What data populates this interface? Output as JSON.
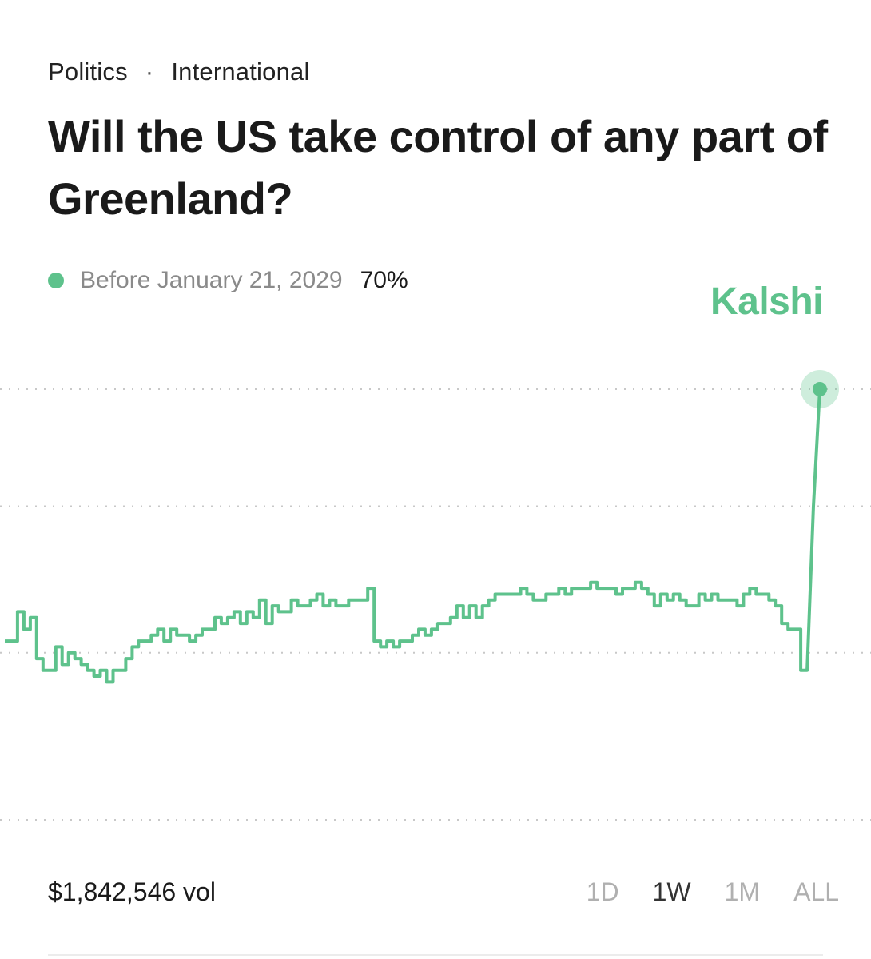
{
  "breadcrumb": {
    "category": "Politics",
    "separator": "·",
    "subcategory": "International"
  },
  "title": "Will the US take control of any part of Greenland?",
  "legend": {
    "label": "Before January 21, 2029",
    "value": "70%",
    "color": "#5ec28c"
  },
  "brand": "Kalshi",
  "volume": "$1,842,546 vol",
  "ranges": [
    {
      "label": "1D",
      "active": false
    },
    {
      "label": "1W",
      "active": true
    },
    {
      "label": "1M",
      "active": false
    },
    {
      "label": "ALL",
      "active": false
    }
  ],
  "chart_data": {
    "type": "line",
    "ylim": [
      0,
      75
    ],
    "gridlines": [
      15,
      25,
      50,
      70
    ],
    "grid": true,
    "current_value": 70,
    "series": [
      {
        "values": [
          27,
          27,
          32,
          29,
          31,
          24,
          22,
          22,
          26,
          23,
          25,
          24,
          23,
          22,
          21,
          22,
          20,
          22,
          22,
          24,
          26,
          27,
          27,
          28,
          29,
          27,
          29,
          28,
          28,
          27,
          28,
          29,
          29,
          31,
          30,
          31,
          32,
          30,
          32,
          31,
          34,
          30,
          33,
          32,
          32,
          34,
          33,
          33,
          34,
          35,
          33,
          34,
          33,
          33,
          34,
          34,
          34,
          36,
          27,
          26,
          27,
          26,
          27,
          27,
          28,
          29,
          28,
          29,
          30,
          30,
          31,
          33,
          31,
          33,
          31,
          33,
          34,
          35,
          35,
          35,
          35,
          36,
          35,
          34,
          34,
          35,
          35,
          36,
          35,
          36,
          36,
          36,
          37,
          36,
          36,
          36,
          35,
          36,
          36,
          37,
          36,
          35,
          33,
          35,
          34,
          35,
          34,
          33,
          33,
          35,
          34,
          35,
          34,
          34,
          34,
          33,
          35,
          36,
          35,
          35,
          34,
          33,
          30,
          29,
          29,
          22,
          22,
          50,
          70
        ]
      }
    ]
  }
}
